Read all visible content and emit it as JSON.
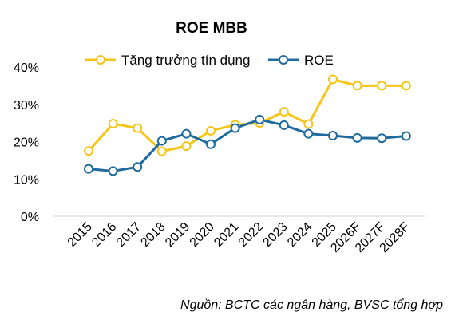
{
  "chart_data": {
    "type": "line",
    "title": "ROE MBB",
    "xlabel": "",
    "ylabel": "",
    "categories": [
      "2015",
      "2016",
      "2017",
      "2018",
      "2019",
      "2020",
      "2021",
      "2022",
      "2023",
      "2024",
      "2025",
      "2026F",
      "2027F",
      "2028F"
    ],
    "series": [
      {
        "name": "Tăng trưởng tín dụng",
        "color": "#F5C518",
        "values": [
          17.5,
          24.8,
          23.6,
          17.4,
          18.8,
          22.9,
          24.5,
          25.0,
          28.0,
          24.7,
          36.7,
          35.0,
          35.0,
          35.0
        ]
      },
      {
        "name": "ROE",
        "color": "#1F6A9E",
        "values": [
          12.7,
          12.1,
          13.2,
          20.2,
          22.1,
          19.3,
          23.6,
          25.9,
          24.4,
          22.1,
          21.6,
          21.0,
          20.9,
          21.5
        ]
      }
    ],
    "yticks": [
      "0%",
      "10%",
      "20%",
      "30%",
      "40%"
    ],
    "ylim": [
      0,
      40
    ],
    "grid": false,
    "legend_position": "top"
  },
  "source_note": "Nguồn: BCTC các ngân hàng, BVSC tổng hợp"
}
